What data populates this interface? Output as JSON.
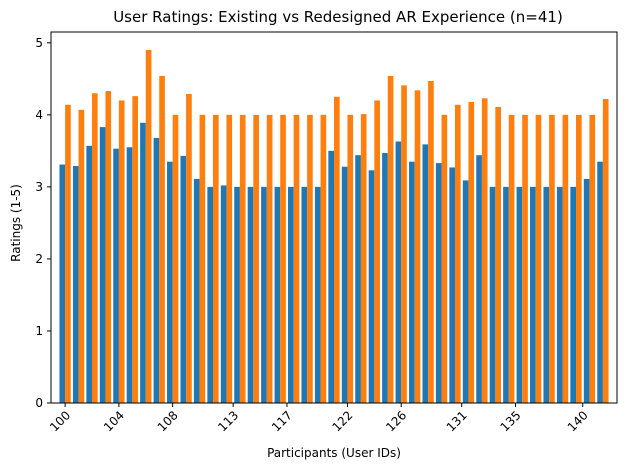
{
  "chart_data": {
    "type": "bar",
    "title": "User Ratings: Existing vs Redesigned AR Experience (n=41)",
    "xlabel": "Participants (User IDs)",
    "ylabel": "Ratings (1-5)",
    "ylim": [
      0,
      5.15
    ],
    "yticks": [
      0,
      1,
      2,
      3,
      4,
      5
    ],
    "x": [
      100,
      101,
      102,
      103,
      104,
      105,
      106,
      107,
      108,
      109,
      110,
      111,
      112,
      113,
      114,
      115,
      116,
      117,
      118,
      119,
      120,
      121,
      122,
      123,
      124,
      125,
      126,
      127,
      128,
      129,
      130,
      131,
      132,
      133,
      134,
      135,
      136,
      137,
      138,
      139,
      140
    ],
    "xticks": [
      "100",
      "104",
      "108",
      "113",
      "117",
      "122",
      "126",
      "131",
      "135",
      "140"
    ],
    "xtick_positions": [
      100,
      104,
      108,
      112.5,
      116.5,
      121,
      125,
      129.5,
      133.5,
      138.5
    ],
    "series": [
      {
        "name": "Existing",
        "color": "#1f77b4",
        "values": [
          3.31,
          3.29,
          3.57,
          3.83,
          3.53,
          3.55,
          3.89,
          3.68,
          3.35,
          3.43,
          3.11,
          3.0,
          3.02,
          3.0,
          3.0,
          3.0,
          3.0,
          3.0,
          3.0,
          3.0,
          3.5,
          3.28,
          3.44,
          3.23,
          3.47,
          3.63,
          3.35,
          3.59,
          3.33,
          3.27,
          3.09,
          3.44,
          3.0,
          3.0,
          3.0,
          3.0,
          3.0,
          3.0,
          3.0,
          3.11,
          3.35
        ]
      },
      {
        "name": "Redesigned",
        "color": "#ff7f0e",
        "values": [
          4.14,
          4.07,
          4.3,
          4.33,
          4.2,
          4.26,
          4.9,
          4.54,
          4.0,
          4.29,
          4.0,
          4.0,
          4.0,
          4.0,
          4.0,
          4.0,
          4.0,
          4.0,
          4.0,
          4.0,
          4.25,
          4.0,
          4.01,
          4.2,
          4.54,
          4.41,
          4.34,
          4.47,
          4.0,
          4.14,
          4.18,
          4.23,
          4.11,
          4.0,
          4.0,
          4.0,
          4.0,
          4.0,
          4.0,
          4.0,
          4.22
        ]
      }
    ],
    "grid": false,
    "legend": "none"
  }
}
